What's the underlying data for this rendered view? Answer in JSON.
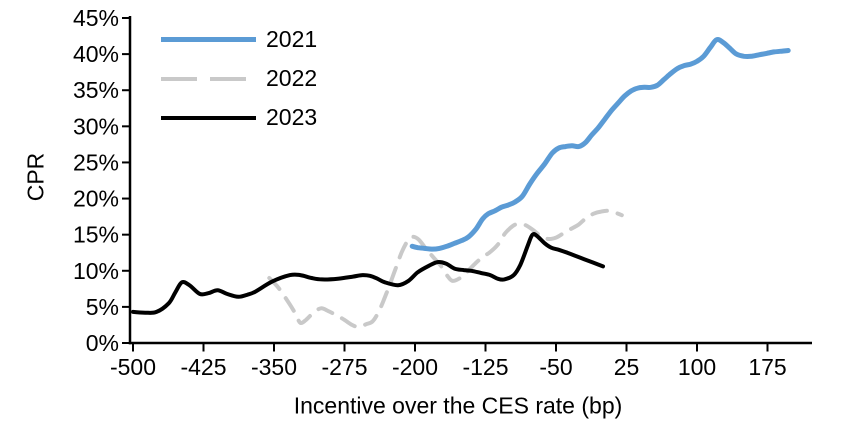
{
  "chart_data": {
    "type": "line",
    "title": "",
    "xlabel": "Incentive over the CES rate (bp)",
    "ylabel": "CPR",
    "xlim": [
      -503,
      222
    ],
    "ylim": [
      0,
      45
    ],
    "x_ticks": [
      -500,
      -425,
      -350,
      -275,
      -200,
      -125,
      -50,
      25,
      100,
      175
    ],
    "y_ticks": [
      0,
      5,
      10,
      15,
      20,
      25,
      30,
      35,
      40,
      45
    ],
    "y_tick_suffix": "%",
    "grid": false,
    "legend_position": "top-left-inside",
    "axis_color": "#000000",
    "series": [
      {
        "name": "2022",
        "color": "#c9c9c9",
        "style": "dashed",
        "width": 4,
        "points": [
          [
            -355,
            9.0
          ],
          [
            -345,
            7.6
          ],
          [
            -333,
            5.3
          ],
          [
            -327,
            4.0
          ],
          [
            -322,
            2.8
          ],
          [
            -316,
            3.2
          ],
          [
            -308,
            4.2
          ],
          [
            -300,
            4.8
          ],
          [
            -292,
            4.4
          ],
          [
            -283,
            3.8
          ],
          [
            -275,
            3.2
          ],
          [
            -267,
            2.5
          ],
          [
            -260,
            2.2
          ],
          [
            -252,
            2.6
          ],
          [
            -245,
            3.0
          ],
          [
            -238,
            4.5
          ],
          [
            -230,
            7.0
          ],
          [
            -222,
            9.8
          ],
          [
            -214,
            12.6
          ],
          [
            -207,
            14.3
          ],
          [
            -202,
            14.7
          ],
          [
            -196,
            14.3
          ],
          [
            -188,
            13.0
          ],
          [
            -180,
            11.8
          ],
          [
            -172,
            10.6
          ],
          [
            -165,
            9.2
          ],
          [
            -160,
            8.6
          ],
          [
            -152,
            9.0
          ],
          [
            -145,
            9.8
          ],
          [
            -136,
            11.0
          ],
          [
            -128,
            11.9
          ],
          [
            -120,
            12.6
          ],
          [
            -112,
            13.6
          ],
          [
            -104,
            15.2
          ],
          [
            -96,
            16.2
          ],
          [
            -90,
            16.5
          ],
          [
            -82,
            16.3
          ],
          [
            -74,
            15.6
          ],
          [
            -66,
            14.8
          ],
          [
            -58,
            14.4
          ],
          [
            -50,
            14.6
          ],
          [
            -42,
            15.2
          ],
          [
            -34,
            15.8
          ],
          [
            -26,
            16.4
          ],
          [
            -18,
            17.3
          ],
          [
            -10,
            17.9
          ],
          [
            -2,
            18.2
          ],
          [
            6,
            18.3
          ],
          [
            14,
            18.0
          ],
          [
            20,
            17.7
          ]
        ]
      },
      {
        "name": "2021",
        "color": "#5b9bd5",
        "style": "solid",
        "width": 5,
        "points": [
          [
            -203,
            13.4
          ],
          [
            -197,
            13.2
          ],
          [
            -190,
            13.1
          ],
          [
            -182,
            13.0
          ],
          [
            -174,
            13.1
          ],
          [
            -166,
            13.4
          ],
          [
            -158,
            13.8
          ],
          [
            -150,
            14.2
          ],
          [
            -143,
            14.7
          ],
          [
            -135,
            15.8
          ],
          [
            -128,
            17.2
          ],
          [
            -122,
            17.9
          ],
          [
            -115,
            18.3
          ],
          [
            -108,
            18.8
          ],
          [
            -101,
            19.1
          ],
          [
            -94,
            19.5
          ],
          [
            -86,
            20.3
          ],
          [
            -78,
            22.0
          ],
          [
            -70,
            23.5
          ],
          [
            -62,
            24.8
          ],
          [
            -54,
            26.3
          ],
          [
            -47,
            27.0
          ],
          [
            -40,
            27.2
          ],
          [
            -33,
            27.3
          ],
          [
            -26,
            27.2
          ],
          [
            -19,
            27.7
          ],
          [
            -12,
            28.8
          ],
          [
            -5,
            29.8
          ],
          [
            2,
            31.0
          ],
          [
            9,
            32.2
          ],
          [
            16,
            33.2
          ],
          [
            23,
            34.2
          ],
          [
            30,
            34.9
          ],
          [
            37,
            35.3
          ],
          [
            44,
            35.4
          ],
          [
            51,
            35.4
          ],
          [
            58,
            35.7
          ],
          [
            65,
            36.5
          ],
          [
            72,
            37.3
          ],
          [
            79,
            38.0
          ],
          [
            86,
            38.4
          ],
          [
            93,
            38.6
          ],
          [
            100,
            39.0
          ],
          [
            107,
            39.7
          ],
          [
            114,
            40.9
          ],
          [
            121,
            42.0
          ],
          [
            128,
            41.6
          ],
          [
            135,
            40.8
          ],
          [
            142,
            40.0
          ],
          [
            150,
            39.7
          ],
          [
            158,
            39.7
          ],
          [
            166,
            39.9
          ],
          [
            174,
            40.1
          ],
          [
            182,
            40.3
          ],
          [
            190,
            40.4
          ],
          [
            197,
            40.5
          ]
        ]
      },
      {
        "name": "2023",
        "color": "#000000",
        "style": "solid",
        "width": 4,
        "points": [
          [
            -500,
            4.3
          ],
          [
            -487,
            4.2
          ],
          [
            -475,
            4.3
          ],
          [
            -462,
            5.5
          ],
          [
            -455,
            7.0
          ],
          [
            -448,
            8.4
          ],
          [
            -440,
            8.0
          ],
          [
            -429,
            6.8
          ],
          [
            -420,
            6.9
          ],
          [
            -410,
            7.3
          ],
          [
            -400,
            6.8
          ],
          [
            -388,
            6.4
          ],
          [
            -378,
            6.7
          ],
          [
            -370,
            7.1
          ],
          [
            -352,
            8.5
          ],
          [
            -333,
            9.4
          ],
          [
            -322,
            9.4
          ],
          [
            -310,
            9.0
          ],
          [
            -299,
            8.8
          ],
          [
            -282,
            8.9
          ],
          [
            -266,
            9.2
          ],
          [
            -256,
            9.4
          ],
          [
            -248,
            9.3
          ],
          [
            -240,
            8.9
          ],
          [
            -232,
            8.4
          ],
          [
            -218,
            8.0
          ],
          [
            -207,
            8.6
          ],
          [
            -197,
            9.8
          ],
          [
            -185,
            10.7
          ],
          [
            -176,
            11.2
          ],
          [
            -167,
            11.0
          ],
          [
            -158,
            10.3
          ],
          [
            -148,
            10.1
          ],
          [
            -140,
            10.0
          ],
          [
            -130,
            9.7
          ],
          [
            -120,
            9.4
          ],
          [
            -112,
            8.9
          ],
          [
            -105,
            8.8
          ],
          [
            -95,
            9.4
          ],
          [
            -88,
            10.8
          ],
          [
            -80,
            13.5
          ],
          [
            -75,
            15.0
          ],
          [
            -70,
            14.8
          ],
          [
            -62,
            13.8
          ],
          [
            -55,
            13.2
          ],
          [
            -47,
            12.9
          ],
          [
            -38,
            12.5
          ],
          [
            -30,
            12.1
          ],
          [
            -20,
            11.6
          ],
          [
            -10,
            11.1
          ],
          [
            0,
            10.6
          ]
        ]
      }
    ],
    "legend_order": [
      "2021",
      "2022",
      "2023"
    ]
  }
}
